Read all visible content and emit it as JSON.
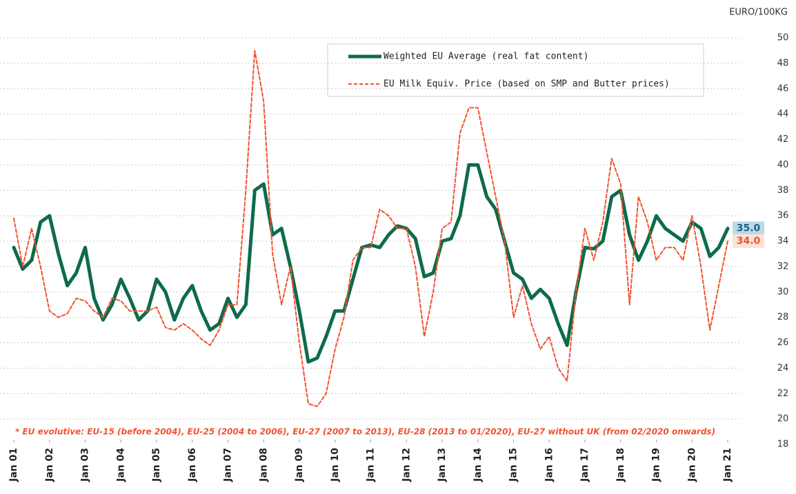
{
  "chart_data": {
    "type": "line",
    "unit_label": "EURO/100KG",
    "footnote": "* EU evolutive: EU-15 (before 2004), EU-25 (2004 to 2006), EU-27 (2007 to 2013), EU-28 (2013 to 01/2020), EU-27 without UK (from 02/2020 onwards)",
    "x": [
      1,
      1.25,
      1.5,
      1.75,
      2,
      2.25,
      2.5,
      2.75,
      3,
      3.25,
      3.5,
      3.75,
      4,
      4.25,
      4.5,
      4.75,
      5,
      5.25,
      5.5,
      5.75,
      6,
      6.25,
      6.5,
      6.75,
      7,
      7.25,
      7.5,
      7.75,
      8,
      8.25,
      8.5,
      8.75,
      9,
      9.25,
      9.5,
      9.75,
      10,
      10.25,
      10.5,
      10.75,
      11,
      11.25,
      11.5,
      11.75,
      12,
      12.25,
      12.5,
      12.75,
      13,
      13.25,
      13.5,
      13.75,
      14,
      14.25,
      14.5,
      14.75,
      15,
      15.25,
      15.5,
      15.75,
      16,
      16.25,
      16.5,
      16.75,
      17,
      17.25,
      17.5,
      17.75,
      18,
      18.25,
      18.5,
      18.75,
      19,
      19.25,
      19.5,
      19.75,
      20,
      20.25,
      20.5,
      20.75,
      21
    ],
    "series": [
      {
        "name": "Weighted EU Average (real fat content)",
        "color": "#0e6b4a",
        "style": "solid",
        "values": [
          33.5,
          31.8,
          32.5,
          35.5,
          36.0,
          33,
          30.5,
          31.5,
          33.5,
          29.5,
          27.8,
          29,
          31,
          29.5,
          27.8,
          28.5,
          31,
          30,
          27.8,
          29.5,
          30.5,
          28.5,
          27,
          27.5,
          29.5,
          28,
          29,
          38,
          38.5,
          34.5,
          35,
          32,
          28.5,
          24.5,
          24.8,
          26.5,
          28.5,
          28.5,
          31,
          33.5,
          33.7,
          33.5,
          34.5,
          35.2,
          35,
          34.2,
          31.2,
          31.5,
          34,
          34.2,
          36,
          40,
          40,
          37.5,
          36.5,
          34,
          31.5,
          31,
          29.5,
          30.2,
          29.5,
          27.5,
          25.8,
          30,
          33.5,
          33.4,
          34,
          37.5,
          38,
          34.5,
          32.5,
          34,
          36,
          35,
          34.5,
          34,
          35.5,
          35,
          32.8,
          33.5,
          35
        ],
        "value_labels": [
          null,
          null,
          null,
          null,
          null,
          null,
          null,
          null,
          null,
          null,
          null,
          null,
          null,
          null,
          null,
          null,
          null,
          null,
          null,
          null,
          null,
          null,
          null,
          null,
          null,
          null,
          null,
          null,
          null,
          null,
          null,
          null,
          null,
          null,
          null,
          null,
          null,
          null,
          null,
          null,
          null,
          null,
          null,
          null,
          null,
          null,
          null,
          null,
          null,
          null,
          null,
          null,
          null,
          null,
          null,
          null,
          null,
          null,
          null,
          null,
          null,
          null,
          null,
          null,
          null,
          null,
          null,
          null,
          null,
          null,
          null,
          null,
          null,
          null,
          null,
          null,
          null,
          null,
          null,
          null,
          "35.0"
        ],
        "label_bg": "#bcd9e6",
        "label_color": "#1f5f8a"
      },
      {
        "name": "EU Milk Equiv. Price (based on SMP and Butter prices)",
        "color": "#f0522e",
        "style": "dashed",
        "values": [
          35.8,
          32,
          35,
          32,
          28.5,
          28,
          28.3,
          29.5,
          29.3,
          28.5,
          28,
          29.5,
          29.3,
          28.5,
          28.5,
          28.5,
          28.8,
          27.2,
          27,
          27.5,
          27,
          26.3,
          25.8,
          27,
          29,
          29,
          38,
          49,
          45,
          33,
          29,
          32,
          26,
          21.2,
          21,
          22,
          25.5,
          28,
          32.5,
          33.5,
          33.5,
          36.5,
          36,
          35,
          35,
          32,
          26.5,
          30,
          35,
          35.5,
          42.5,
          44.5,
          44.5,
          41,
          37.5,
          34,
          28,
          30.5,
          27.5,
          25.5,
          26.5,
          24,
          23,
          30,
          35,
          32.5,
          35.5,
          40.5,
          38.5,
          29,
          37.5,
          35.5,
          32.5,
          33.5,
          33.5,
          32.5,
          36,
          32,
          27,
          30.5,
          34
        ],
        "value_labels": [
          null,
          null,
          null,
          null,
          null,
          null,
          null,
          null,
          null,
          null,
          null,
          null,
          null,
          null,
          null,
          null,
          null,
          null,
          null,
          null,
          null,
          null,
          null,
          null,
          null,
          null,
          null,
          null,
          null,
          null,
          null,
          null,
          null,
          null,
          null,
          null,
          null,
          null,
          null,
          null,
          null,
          null,
          null,
          null,
          null,
          null,
          null,
          null,
          null,
          null,
          null,
          null,
          null,
          null,
          null,
          null,
          null,
          null,
          null,
          null,
          null,
          null,
          null,
          null,
          null,
          null,
          null,
          null,
          null,
          null,
          null,
          null,
          null,
          null,
          null,
          null,
          null,
          null,
          null,
          null,
          "34.0"
        ],
        "label_bg": "#fde3d6",
        "label_color": "#f0522e"
      }
    ],
    "xlim": [
      1,
      21
    ],
    "xticks": [
      {
        "value": 1,
        "label": "Jan 01"
      },
      {
        "value": 2,
        "label": "Jan 02"
      },
      {
        "value": 3,
        "label": "Jan 03"
      },
      {
        "value": 4,
        "label": "Jan 04"
      },
      {
        "value": 5,
        "label": "Jan 05"
      },
      {
        "value": 6,
        "label": "Jan 06"
      },
      {
        "value": 7,
        "label": "Jan 07"
      },
      {
        "value": 8,
        "label": "Jan 08"
      },
      {
        "value": 9,
        "label": "Jan 09"
      },
      {
        "value": 10,
        "label": "Jan 10"
      },
      {
        "value": 11,
        "label": "Jan 11"
      },
      {
        "value": 12,
        "label": "Jan 12"
      },
      {
        "value": 13,
        "label": "Jan 13"
      },
      {
        "value": 14,
        "label": "Jan 14"
      },
      {
        "value": 15,
        "label": "Jan 15"
      },
      {
        "value": 16,
        "label": "Jan 16"
      },
      {
        "value": 17,
        "label": "Jan 17"
      },
      {
        "value": 18,
        "label": "Jan 18"
      },
      {
        "value": 19,
        "label": "Jan 19"
      },
      {
        "value": 20,
        "label": "Jan 20"
      },
      {
        "value": 21,
        "label": "Jan 21"
      }
    ],
    "ylim": [
      18,
      50
    ],
    "yticks": [
      18,
      20,
      22,
      24,
      26,
      28,
      30,
      32,
      34,
      36,
      38,
      40,
      42,
      44,
      46,
      48,
      50
    ],
    "grid": true
  }
}
